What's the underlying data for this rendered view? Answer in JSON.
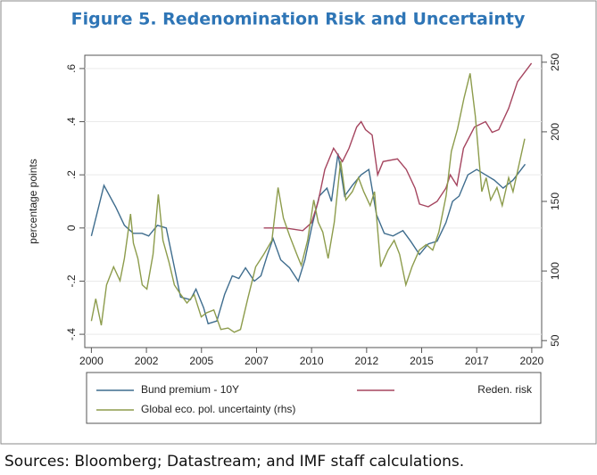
{
  "chart_data": {
    "type": "line",
    "title": "Figure 5. Redenomination Risk and Uncertainty",
    "ylabel": "percentage points",
    "source": "Sources: Bloomberg; Datastream; and IMF staff calculations.",
    "xlim": [
      1999.7,
      2020.45
    ],
    "xticks": [
      2000,
      {
        "value": 2002.5,
        "label": "2002"
      },
      2005,
      {
        "value": 2007.5,
        "label": "2007"
      },
      2010,
      {
        "value": 2012.5,
        "label": "2012"
      },
      2015,
      {
        "value": 2017.5,
        "label": "2017"
      },
      2020
    ],
    "ylim": [
      -0.45,
      0.65
    ],
    "yticks": [
      {
        "value": -0.4,
        "label": "-.4"
      },
      {
        "value": -0.2,
        "label": "-.2"
      },
      0,
      {
        "value": 0.2,
        "label": ".2"
      },
      {
        "value": 0.4,
        "label": ".4"
      },
      {
        "value": 0.6,
        "label": ".6"
      }
    ],
    "y2lim": [
      45,
      255
    ],
    "y2ticks": [
      50,
      100,
      150,
      200,
      250
    ],
    "grid": true,
    "series": [
      {
        "name": "Bund premium - 10Y",
        "color": "#3f6d8e",
        "axis": "y",
        "x": [
          2000,
          2000.57,
          2001.1,
          2001.5,
          2001.9,
          2002.3,
          2002.6,
          2003,
          2003.4,
          2003.7,
          2004.05,
          2004.5,
          2004.75,
          2005.1,
          2005.3,
          2005.7,
          2006.05,
          2006.4,
          2006.7,
          2007,
          2007.4,
          2007.7,
          2008,
          2008.25,
          2008.6,
          2009,
          2009.4,
          2009.7,
          2010,
          2010.35,
          2010.7,
          2010.9,
          2011.2,
          2011.5,
          2011.85,
          2012.25,
          2012.6,
          2012.95,
          2013.3,
          2013.7,
          2014.15,
          2014.5,
          2014.9,
          2015.3,
          2015.7,
          2016.1,
          2016.4,
          2016.7,
          2017.1,
          2017.5,
          2017.9,
          2018.3,
          2018.7,
          2019.15,
          2019.7
        ],
        "values": [
          -0.03,
          0.16,
          0.08,
          0.01,
          -0.02,
          -0.02,
          -0.03,
          0.01,
          0,
          -0.12,
          -0.26,
          -0.27,
          -0.23,
          -0.3,
          -0.36,
          -0.35,
          -0.25,
          -0.18,
          -0.19,
          -0.15,
          -0.2,
          -0.18,
          -0.1,
          -0.04,
          -0.12,
          -0.15,
          -0.2,
          -0.12,
          0,
          0.12,
          0.15,
          0.1,
          0.28,
          0.12,
          0.16,
          0.2,
          0.22,
          0.05,
          -0.02,
          -0.03,
          -0.01,
          -0.05,
          -0.1,
          -0.06,
          -0.05,
          0.02,
          0.1,
          0.12,
          0.2,
          0.22,
          0.2,
          0.18,
          0.15,
          0.18,
          0.24
        ]
      },
      {
        "name": "Reden. risk",
        "color": "#a5455f",
        "axis": "y",
        "x": [
          2007.83,
          2008.8,
          2009.6,
          2010,
          2010.3,
          2010.6,
          2011,
          2011.4,
          2011.7,
          2012.05,
          2012.25,
          2012.45,
          2012.75,
          2013,
          2013.25,
          2013.9,
          2014.3,
          2014.7,
          2014.9,
          2015.3,
          2015.7,
          2016.1,
          2016.3,
          2016.6,
          2016.9,
          2017.4,
          2017.9,
          2018.2,
          2018.5,
          2018.95,
          2019.35,
          2019.99
        ],
        "values": [
          0,
          0,
          -0.01,
          0.02,
          0.1,
          0.22,
          0.3,
          0.25,
          0.3,
          0.38,
          0.4,
          0.37,
          0.35,
          0.2,
          0.25,
          0.26,
          0.22,
          0.15,
          0.09,
          0.08,
          0.1,
          0.15,
          0.2,
          0.16,
          0.3,
          0.38,
          0.4,
          0.36,
          0.37,
          0.45,
          0.55,
          0.62
        ]
      },
      {
        "name": "Global eco. pol. uncertainty (rhs)",
        "color": "#8d9c4c",
        "axis": "y2",
        "x": [
          2000,
          2000.2,
          2000.45,
          2000.69,
          2001.01,
          2001.3,
          2001.5,
          2001.78,
          2001.91,
          2002.11,
          2002.31,
          2002.52,
          2002.8,
          2003.04,
          2003.25,
          2003.53,
          2003.77,
          2004.06,
          2004.34,
          2004.67,
          2004.99,
          2005.23,
          2005.56,
          2005.88,
          2006.21,
          2006.49,
          2006.77,
          2007.1,
          2007.46,
          2007.83,
          2008.2,
          2008.48,
          2008.72,
          2009.01,
          2009.33,
          2009.53,
          2009.82,
          2010.1,
          2010.3,
          2010.51,
          2010.75,
          2011.03,
          2011.32,
          2011.56,
          2011.85,
          2012.13,
          2012.37,
          2012.66,
          2012.86,
          2013.14,
          2013.47,
          2013.75,
          2014,
          2014.28,
          2014.56,
          2014.89,
          2015.21,
          2015.5,
          2015.78,
          2016.11,
          2016.35,
          2016.63,
          2016.92,
          2017.2,
          2017.44,
          2017.73,
          2017.93,
          2018.13,
          2018.42,
          2018.66,
          2018.95,
          2019.15,
          2019.68
        ],
        "values": [
          64,
          80,
          61,
          90,
          103,
          93,
          109,
          141,
          120,
          109,
          90,
          87,
          112,
          155,
          122,
          106,
          90,
          83,
          77,
          83,
          67,
          70,
          72,
          58,
          59,
          56,
          58,
          80,
          103,
          112,
          122,
          160,
          138,
          125,
          112,
          104,
          122,
          151,
          135,
          128,
          109,
          135,
          179,
          151,
          157,
          167,
          157,
          147,
          157,
          103,
          115,
          122,
          112,
          90,
          103,
          115,
          119,
          115,
          128,
          154,
          186,
          202,
          224,
          242,
          211,
          157,
          167,
          151,
          160,
          147,
          167,
          157,
          195
        ]
      }
    ]
  }
}
